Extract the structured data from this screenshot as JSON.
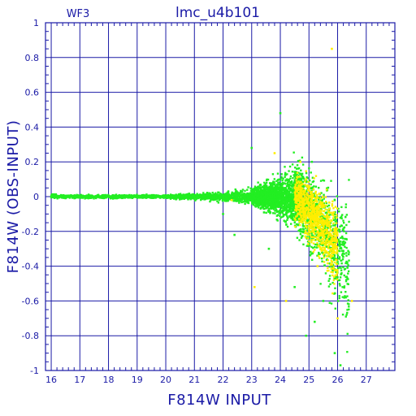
{
  "chart_data": {
    "type": "scatter",
    "title": "lmc_u4b101",
    "corner_label": "WF3",
    "xlabel": "F814W INPUT",
    "ylabel": "F814W (OBS-INPUT)",
    "xlim": [
      15.8,
      28.0
    ],
    "ylim": [
      -1,
      1
    ],
    "x_ticks": [
      16,
      17,
      18,
      19,
      20,
      21,
      22,
      23,
      24,
      25,
      26,
      27
    ],
    "y_ticks": [
      -1,
      -0.8,
      -0.6,
      -0.4,
      -0.2,
      0,
      0.2,
      0.4,
      0.6,
      0.8,
      1
    ],
    "y_tick_labels": [
      "-1",
      "-0.8",
      "-0.6",
      "-0.4",
      "-0.2",
      "0",
      "0.2",
      "0.4",
      "0.6",
      "0.8",
      "1"
    ],
    "grid": true,
    "colors": {
      "axes": "#1a1aa6",
      "primary_points": "#22ee22",
      "secondary_points": "#ffee00"
    },
    "series": [
      {
        "color": "#22ee22",
        "envelope": [
          [
            16.0,
            0.02
          ],
          [
            20.0,
            0.02
          ],
          [
            22.0,
            0.05
          ],
          [
            23.0,
            0.1
          ],
          [
            24.0,
            0.22
          ],
          [
            24.8,
            0.4
          ],
          [
            25.3,
            0.45
          ],
          [
            26.2,
            0.7
          ],
          [
            26.4,
            1.0
          ]
        ],
        "x": [
          22.4,
          23.6,
          24.5,
          25.2,
          25.5,
          25.9,
          26.1,
          24.0,
          23.0,
          22.0,
          25.1,
          24.9
        ],
        "y": [
          -0.22,
          -0.3,
          -0.52,
          -0.72,
          -0.6,
          -0.9,
          -0.97,
          0.48,
          0.28,
          -0.1,
          0.2,
          -0.8
        ]
      },
      {
        "color": "#ffee00",
        "x": [
          24.8,
          25.0,
          25.2,
          24.9,
          25.1,
          24.7,
          25.3,
          22.3,
          23.1,
          26.0,
          26.5,
          25.8,
          24.2,
          23.8
        ],
        "y": [
          -0.05,
          0.05,
          -0.1,
          0.1,
          -0.25,
          0.2,
          -0.4,
          -0.02,
          -0.52,
          -0.7,
          -0.6,
          0.85,
          -0.6,
          0.25
        ]
      }
    ]
  }
}
